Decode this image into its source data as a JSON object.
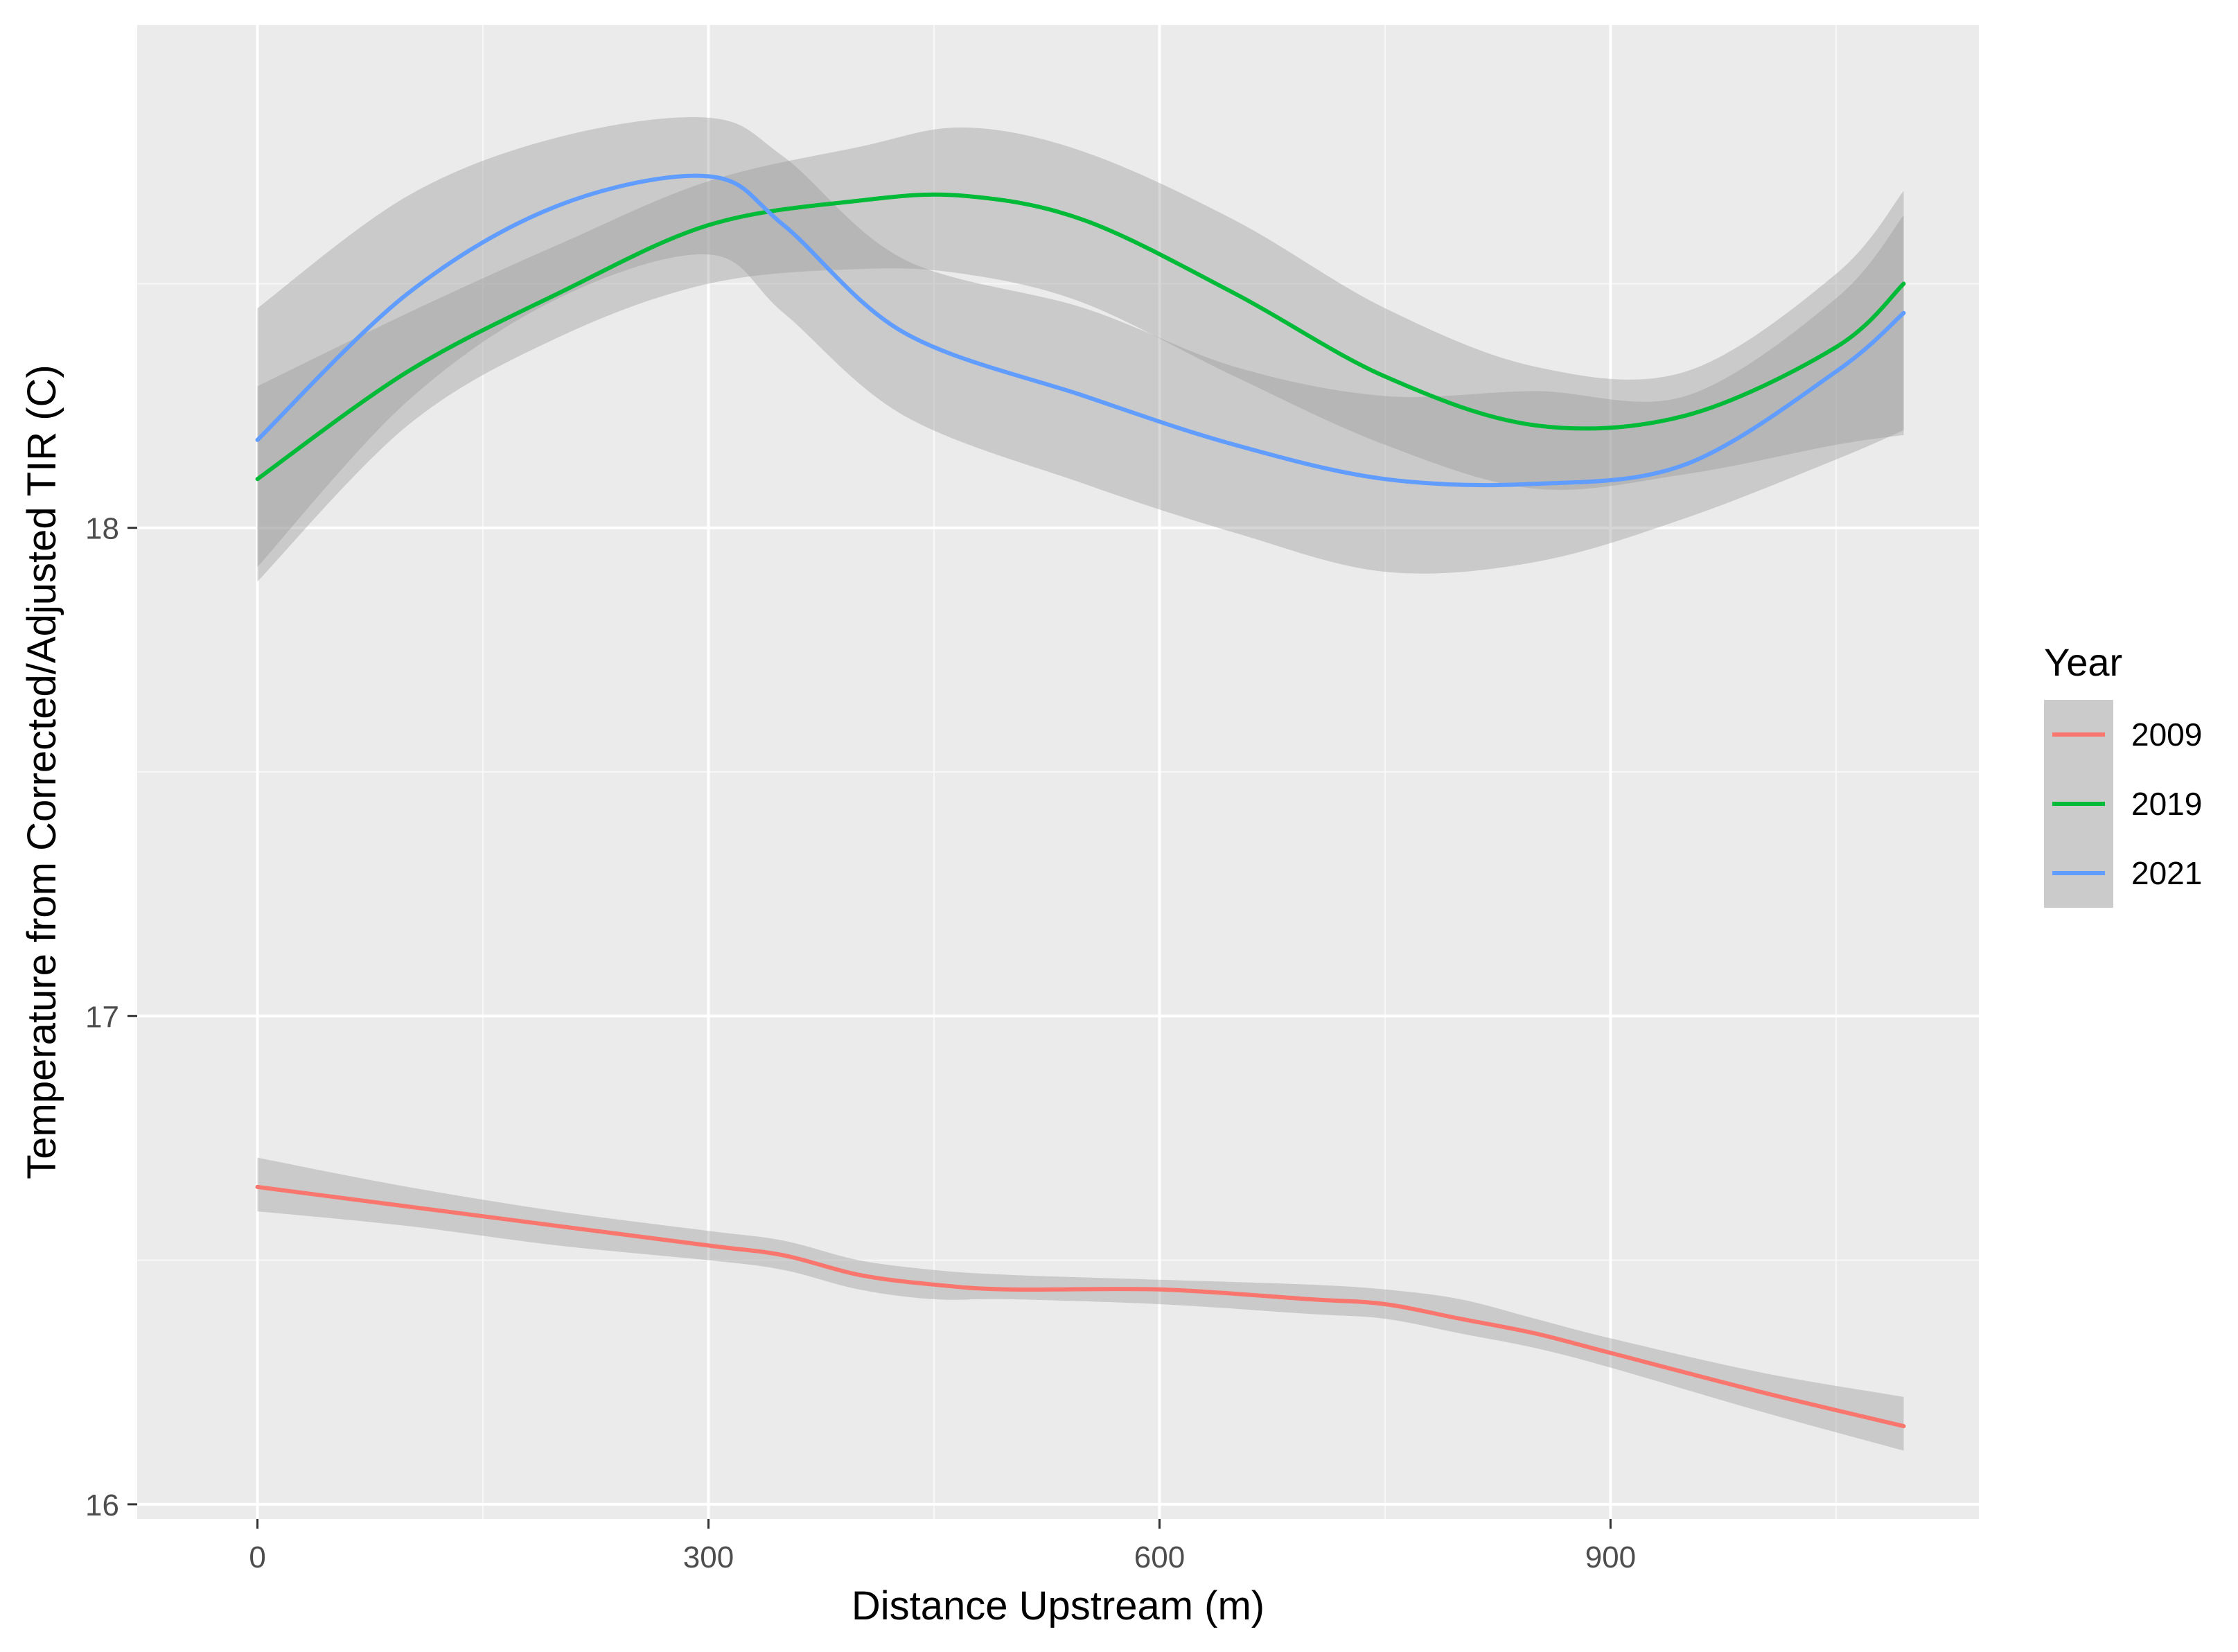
{
  "chart_data": {
    "type": "line",
    "title": "",
    "xlabel": "Distance Upstream (m)",
    "ylabel": "Temperature from Corrected/Adjusted TIR (C)",
    "xlim": [
      -80,
      1145
    ],
    "ylim": [
      15.97,
      19.03
    ],
    "x_ticks": [
      0,
      300,
      600,
      900
    ],
    "x_tick_labels": [
      "0",
      "300",
      "600",
      "900"
    ],
    "y_ticks": [
      16,
      17,
      18
    ],
    "y_tick_labels": [
      "16",
      "17",
      "18"
    ],
    "grid": true,
    "legend": {
      "title": "Year",
      "position": "right"
    },
    "series": [
      {
        "name": "2009",
        "color": "#F8766D",
        "x": [
          0,
          100,
          200,
          300,
          350,
          400,
          450,
          500,
          600,
          700,
          750,
          800,
          850,
          900,
          1000,
          1095
        ],
        "y": [
          16.65,
          16.61,
          16.57,
          16.53,
          16.51,
          16.47,
          16.45,
          16.44,
          16.44,
          16.42,
          16.41,
          16.38,
          16.35,
          16.31,
          16.23,
          16.16
        ],
        "lower": [
          16.6,
          16.57,
          16.53,
          16.5,
          16.48,
          16.44,
          16.42,
          16.42,
          16.41,
          16.39,
          16.38,
          16.35,
          16.32,
          16.28,
          16.19,
          16.11
        ],
        "upper": [
          16.71,
          16.65,
          16.6,
          16.56,
          16.54,
          16.5,
          16.48,
          16.47,
          16.46,
          16.45,
          16.44,
          16.42,
          16.38,
          16.34,
          16.27,
          16.22
        ]
      },
      {
        "name": "2019",
        "color": "#00BA38",
        "x": [
          0,
          100,
          200,
          300,
          400,
          470,
          550,
          650,
          750,
          850,
          950,
          1050,
          1095
        ],
        "y": [
          18.1,
          18.32,
          18.48,
          18.62,
          18.67,
          18.68,
          18.63,
          18.48,
          18.31,
          18.21,
          18.23,
          18.37,
          18.5
        ],
        "lower": [
          17.89,
          18.21,
          18.39,
          18.5,
          18.53,
          18.52,
          18.46,
          18.31,
          18.17,
          18.08,
          18.11,
          18.17,
          18.19
        ],
        "upper": [
          18.29,
          18.44,
          18.58,
          18.71,
          18.78,
          18.82,
          18.77,
          18.63,
          18.45,
          18.33,
          18.32,
          18.52,
          18.69
        ]
      },
      {
        "name": "2021",
        "color": "#619CFF",
        "x": [
          0,
          100,
          200,
          300,
          350,
          430,
          550,
          650,
          750,
          850,
          950,
          1050,
          1095
        ],
        "y": [
          18.18,
          18.48,
          18.66,
          18.72,
          18.62,
          18.4,
          18.27,
          18.17,
          18.1,
          18.09,
          18.13,
          18.32,
          18.44
        ],
        "lower": [
          17.92,
          18.26,
          18.47,
          18.56,
          18.44,
          18.23,
          18.09,
          17.99,
          17.91,
          17.93,
          18.02,
          18.14,
          18.2
        ],
        "upper": [
          18.45,
          18.68,
          18.8,
          18.84,
          18.76,
          18.55,
          18.45,
          18.33,
          18.27,
          18.28,
          18.27,
          18.47,
          18.64
        ]
      }
    ]
  }
}
